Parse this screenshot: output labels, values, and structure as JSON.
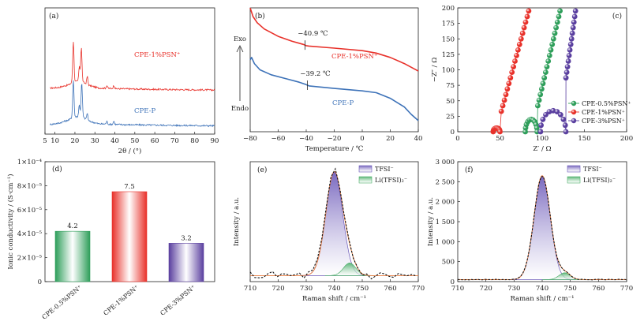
{
  "chart_data": [
    {
      "id": "a",
      "type": "line",
      "panel_label": "(a)",
      "xlabel": "2θ / (°)",
      "ylabel": "",
      "xlim": [
        5,
        90
      ],
      "xticks": [
        5,
        10,
        20,
        30,
        40,
        50,
        60,
        70,
        80,
        90
      ],
      "series": [
        {
          "name": "CPE-1%PSN⁺",
          "color": "#e8312a",
          "offset": 0.55,
          "baseline": [
            [
              5,
              0.04
            ],
            [
              12,
              0.06
            ],
            [
              17,
              0.1
            ],
            [
              19,
              0.14
            ],
            [
              21,
              0.15
            ],
            [
              24,
              0.14
            ],
            [
              27,
              0.09
            ],
            [
              32,
              0.05
            ],
            [
              40,
              0.04
            ],
            [
              60,
              0.03
            ],
            [
              90,
              0.02
            ]
          ],
          "peaks": [
            [
              19.2,
              0.62
            ],
            [
              23.2,
              0.52
            ],
            [
              22.2,
              0.22
            ],
            [
              26.2,
              0.12
            ],
            [
              36,
              0.04
            ],
            [
              39.5,
              0.05
            ]
          ]
        },
        {
          "name": "CPE-P",
          "color": "#3d72b8",
          "offset": 0.0,
          "baseline": [
            [
              5,
              0.04
            ],
            [
              12,
              0.07
            ],
            [
              17,
              0.12
            ],
            [
              19,
              0.16
            ],
            [
              21,
              0.17
            ],
            [
              24,
              0.16
            ],
            [
              27,
              0.1
            ],
            [
              32,
              0.06
            ],
            [
              40,
              0.05
            ],
            [
              60,
              0.04
            ],
            [
              90,
              0.03
            ]
          ],
          "peaks": [
            [
              19.2,
              0.56
            ],
            [
              23.4,
              0.52
            ],
            [
              22.2,
              0.18
            ],
            [
              26.2,
              0.1
            ],
            [
              36,
              0.04
            ],
            [
              39.5,
              0.05
            ]
          ]
        }
      ]
    },
    {
      "id": "b",
      "type": "line",
      "panel_label": "(b)",
      "xlabel": "Temperature / ℃",
      "ylabel_exo": "Exo",
      "ylabel_endo": "Endo",
      "xlim": [
        -80,
        40
      ],
      "xticks": [
        -80,
        -60,
        -40,
        -20,
        0,
        20,
        40
      ],
      "series": [
        {
          "name": "CPE-1%PSN⁺",
          "color": "#e8312a",
          "points": [
            [
              -80,
              1.0
            ],
            [
              -78,
              0.93
            ],
            [
              -75,
              0.88
            ],
            [
              -70,
              0.83
            ],
            [
              -60,
              0.77
            ],
            [
              -50,
              0.73
            ],
            [
              -42,
              0.705
            ],
            [
              -40,
              0.695
            ],
            [
              -38,
              0.692
            ],
            [
              -20,
              0.675
            ],
            [
              0,
              0.655
            ],
            [
              10,
              0.635
            ],
            [
              20,
              0.6
            ],
            [
              30,
              0.55
            ],
            [
              40,
              0.49
            ]
          ]
        },
        {
          "name": "CPE-P",
          "color": "#3d72b8",
          "points": [
            [
              -80,
              0.58
            ],
            [
              -79,
              0.6
            ],
            [
              -77,
              0.55
            ],
            [
              -73,
              0.5
            ],
            [
              -65,
              0.46
            ],
            [
              -55,
              0.43
            ],
            [
              -45,
              0.4
            ],
            [
              -40,
              0.38
            ],
            [
              -38,
              0.37
            ],
            [
              -20,
              0.35
            ],
            [
              0,
              0.33
            ],
            [
              10,
              0.315
            ],
            [
              20,
              0.27
            ],
            [
              30,
              0.2
            ],
            [
              35,
              0.14
            ],
            [
              40,
              0.09
            ]
          ]
        }
      ],
      "annotations": [
        {
          "text": "−40.9 ℃",
          "x": -40.9,
          "series": 0
        },
        {
          "text": "−39.2 ℃",
          "x": -39.2,
          "series": 1
        }
      ]
    },
    {
      "id": "c",
      "type": "scatter",
      "panel_label": "(c)",
      "xlabel": "Z′ / Ω",
      "ylabel": "−Z″ / Ω",
      "xlim": [
        0,
        200
      ],
      "ylim": [
        0,
        200
      ],
      "xticks": [
        0,
        50,
        100,
        150,
        200
      ],
      "yticks": [
        0,
        25,
        50,
        75,
        100,
        125,
        150,
        175,
        200
      ],
      "legend_position": "lower-right",
      "series": [
        {
          "name": "CPE-0.5%PSN⁺",
          "color": "#2e9e5a",
          "arc_start": 80,
          "arc_diameter": 14,
          "arc_height": 20,
          "tail_x_at_200": 122,
          "tail_slope": 5.8
        },
        {
          "name": "CPE-1%PSN⁺",
          "color": "#e8312a",
          "arc_start": 42,
          "arc_diameter": 8,
          "arc_height": 6,
          "tail_x_at_200": 85,
          "tail_slope": 5.0
        },
        {
          "name": "CPE-3%PSN⁺",
          "color": "#5a3f9f",
          "arc_start": 98,
          "arc_diameter": 30,
          "arc_height": 34,
          "tail_x_at_200": 140,
          "tail_slope": 9.5
        }
      ]
    },
    {
      "id": "d",
      "type": "bar",
      "panel_label": "(d)",
      "ylabel": "Ionic conductivity / (S·cm⁻¹)",
      "ylim": [
        0,
        0.0001
      ],
      "yticks": [
        "0",
        "2×10⁻⁵",
        "4×10⁻⁵",
        "6×10⁻⁵",
        "8×10⁻⁵",
        "1×10⁻⁴"
      ],
      "categories": [
        "CPE-0.5%PSN⁺",
        "CPE-1%PSN⁺",
        "CPE-3%PSN⁺"
      ],
      "values": [
        4.2e-05,
        7.5e-05,
        3.2e-05
      ],
      "value_labels": [
        "4.2",
        "7.5",
        "3.2"
      ],
      "colors": [
        "#2e9e5a",
        "#e8312a",
        "#5a3f9f"
      ]
    },
    {
      "id": "e",
      "type": "area",
      "panel_label": "(e)",
      "xlabel": "Raman shift / cm⁻¹",
      "ylabel": "Intensity / a.u.",
      "xlim": [
        710,
        770
      ],
      "ylim": [
        0,
        400
      ],
      "xticks": [
        710,
        720,
        730,
        740,
        750,
        760,
        770
      ],
      "legend_position": "top-right",
      "peaks": [
        {
          "name": "TFSI⁻",
          "center": 740,
          "height": 345,
          "sigma": 3.0,
          "color": "#6a57b8"
        },
        {
          "name": "Li(TFSI)₂⁻",
          "center": 745.5,
          "height": 42,
          "sigma": 2.2,
          "color": "#4caf6a"
        }
      ],
      "baseline": 20,
      "noisy_raw": true
    },
    {
      "id": "f",
      "type": "area",
      "panel_label": "(f)",
      "xlabel": "Raman shift / cm⁻¹",
      "ylabel": "Intensity / a.u.",
      "xlim": [
        710,
        770
      ],
      "ylim": [
        0,
        3000
      ],
      "xticks": [
        710,
        720,
        730,
        740,
        750,
        760,
        770
      ],
      "yticks": [
        0,
        500,
        1000,
        1500,
        2000,
        2500,
        3000
      ],
      "ytick_labels": [
        "0",
        "500",
        "1 000",
        "1 500",
        "2 000",
        "2 500",
        "3 000"
      ],
      "legend_position": "top-right",
      "peaks": [
        {
          "name": "TFSI⁻",
          "center": 740,
          "height": 2600,
          "sigma": 2.9,
          "color": "#6a57b8"
        },
        {
          "name": "Li(TFSI)₂⁻",
          "center": 748,
          "height": 170,
          "sigma": 2.0,
          "color": "#4caf6a"
        }
      ],
      "baseline": 50,
      "noisy_raw": false
    }
  ]
}
